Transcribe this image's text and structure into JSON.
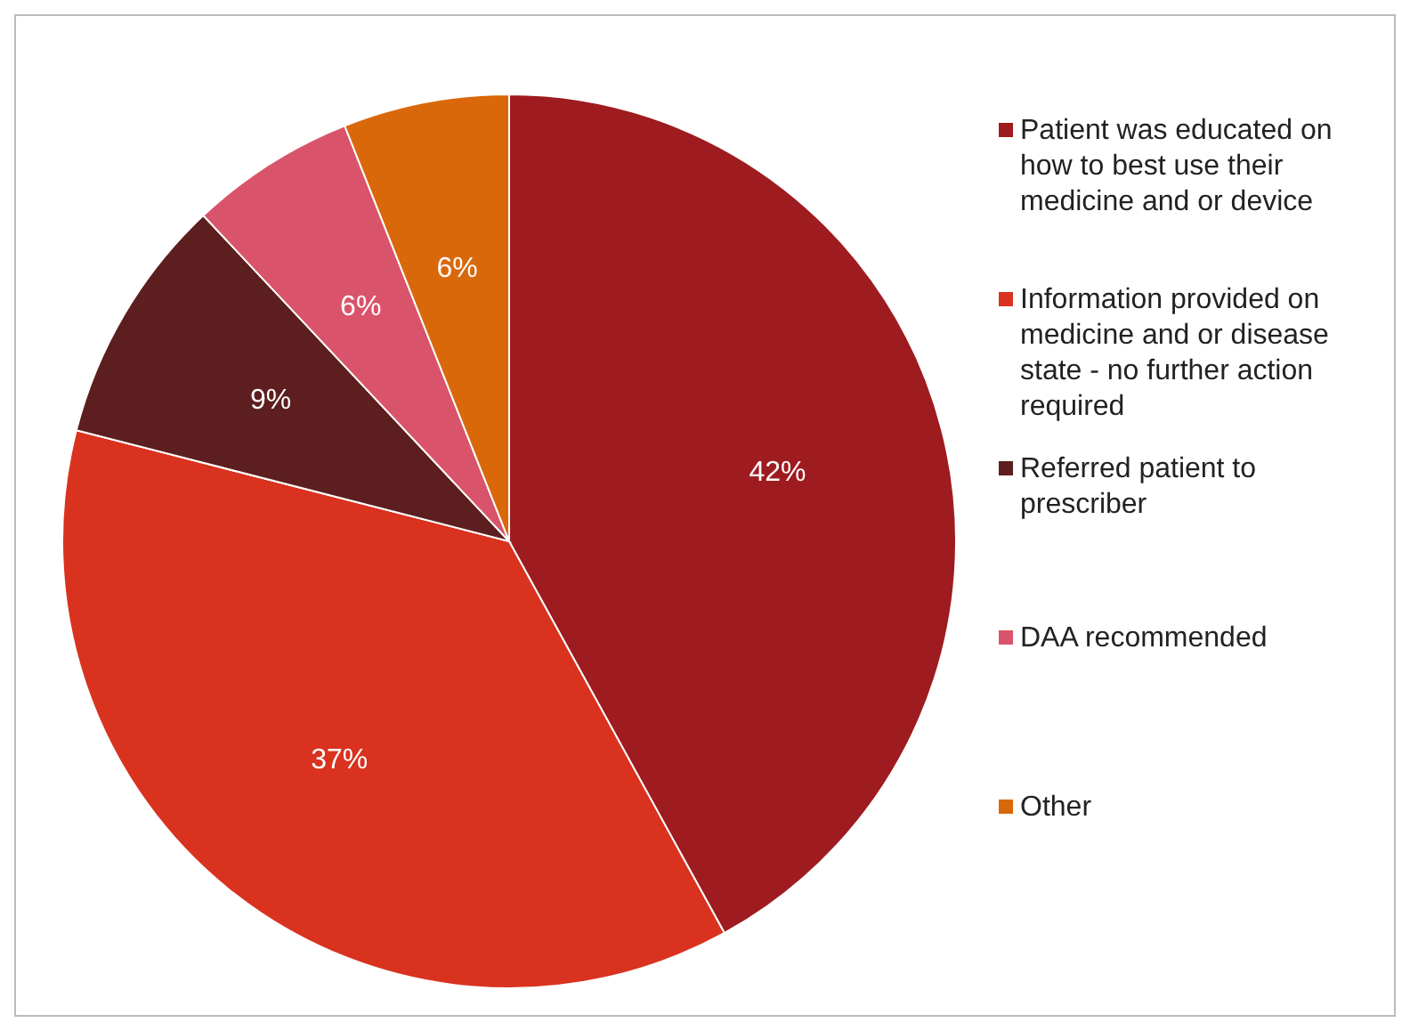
{
  "chart_data": {
    "type": "pie",
    "categories": [
      "Patient was educated on how to best use their medicine and or device",
      "Information provided on medicine and or disease state - no further action required",
      "Referred patient to prescriber",
      "DAA recommended",
      "Other"
    ],
    "values": [
      42,
      37,
      9,
      6,
      6
    ],
    "colors": [
      "#9e1b1f",
      "#d9321f",
      "#5c1e1e",
      "#d9546a",
      "#d9680a"
    ],
    "value_labels": [
      "42%",
      "37%",
      "9%",
      "6%",
      "6%"
    ],
    "legend": "right"
  }
}
